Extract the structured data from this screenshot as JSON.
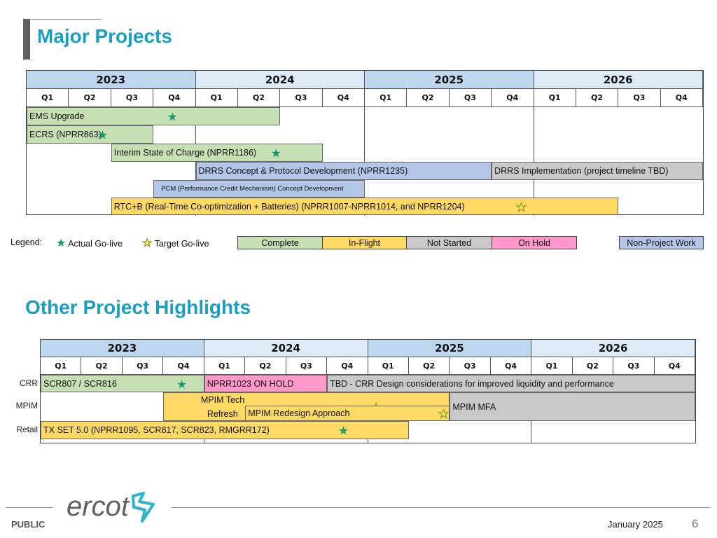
{
  "colors": {
    "complete": "#c6e0b4",
    "in_flight": "#ffd966",
    "not_started": "#c9c9c9",
    "on_hold": "#ff99cc",
    "non_project": "#b4c6e7",
    "year_dark": "#bdd7ee",
    "year_light": "#ddebf7",
    "title": "#1aa0be"
  },
  "header": {
    "title": "Major Projects"
  },
  "major": {
    "years": [
      "2023",
      "2024",
      "2025",
      "2026"
    ],
    "quarters": [
      "Q1",
      "Q2",
      "Q3",
      "Q4"
    ],
    "bars": [
      {
        "label": "EMS Upgrade",
        "status": "complete",
        "row": 0,
        "start": "2023Q1",
        "end": "2024Q2",
        "go_live": {
          "type": "actual",
          "quarter": "2023Q4"
        }
      },
      {
        "label": "ECRS  (NPRR863)",
        "status": "complete",
        "row": 1,
        "start": "2023Q1",
        "end": "2023Q3",
        "go_live": {
          "type": "actual",
          "quarter": "2023Q2"
        }
      },
      {
        "label": "Interim State of Charge (NPRR1186)",
        "status": "complete",
        "row": 2,
        "start": "2023Q3",
        "end": "2024Q3",
        "go_live": {
          "type": "actual",
          "quarter": "2024Q2"
        }
      },
      {
        "label": "DRRS Concept & Protocol Development (NPRR1235)",
        "status": "non_project",
        "row": 3,
        "start": "2024Q1",
        "end": "2025Q3"
      },
      {
        "label": "DRRS Implementation (project timeline TBD)",
        "status": "not_started",
        "row": 3,
        "start": "2025Q4",
        "end": "2026Q4"
      },
      {
        "label": "PCM  (Performance Credit Mechanism) Concept Development",
        "status": "non_project",
        "row": 4,
        "start": "2023Q4",
        "end": "2024Q4",
        "small": true
      },
      {
        "label": "RTC+B  (Real-Time Co-optimization + Batteries)  (NPRR1007-NPRR1014, and NPRR1204)",
        "status": "in_flight",
        "row": 5,
        "start": "2023Q3",
        "end": "2026Q2",
        "go_live": {
          "type": "target",
          "quarter": "2025Q4"
        }
      }
    ]
  },
  "legend": {
    "label": "Legend:",
    "actual": "Actual Go-live",
    "target": "Target Go-live",
    "complete": "Complete",
    "in_flight": "In-Flight",
    "not_started": "Not Started",
    "on_hold": "On Hold",
    "non_project": "Non-Project Work"
  },
  "other": {
    "title": "Other Project Highlights",
    "years": [
      "2023",
      "2024",
      "2025",
      "2026"
    ],
    "quarters": [
      "Q1",
      "Q2",
      "Q3",
      "Q4"
    ],
    "row_labels": [
      "CRR",
      "MPIM",
      "Retail"
    ],
    "bars": [
      {
        "label": "SCR807 / SCR816",
        "status": "complete",
        "row": "crr",
        "start": "2023Q1",
        "end": "2023Q4",
        "go_live": {
          "type": "actual",
          "quarter": "2023Q4"
        }
      },
      {
        "label": "NPRR1023 ON HOLD",
        "status": "on_hold",
        "row": "crr",
        "start": "2024Q1",
        "end": "2024Q3"
      },
      {
        "label": "TBD - CRR Design considerations for improved liquidity and performance",
        "status": "not_started",
        "row": "crr",
        "start": "2024Q4",
        "end": "2026Q4"
      },
      {
        "label": "MPIM Tech Refresh",
        "status": "in_flight",
        "row": "mpim",
        "start": "2023Q4",
        "end": "2025Q2",
        "go_live": {
          "type": "target",
          "quarter": "2025Q1"
        },
        "label_lines": [
          "MPIM Tech",
          "Refresh"
        ]
      },
      {
        "label": "MPIM Redesign Approach",
        "status": "in_flight",
        "row": "mpim_sub",
        "start": "2024Q2",
        "end": "2025Q2",
        "go_live": {
          "type": "target",
          "quarter": "2025Q2"
        }
      },
      {
        "label": "MPIM MFA",
        "status": "not_started",
        "row": "mpim",
        "start": "2025Q3",
        "end": "2026Q4"
      },
      {
        "label": "TX SET 5.0  (NPRR1095, SCR817, SCR823, RMGRR172)",
        "status": "in_flight",
        "row": "retail",
        "start": "2023Q1",
        "end": "2025Q1",
        "go_live": {
          "type": "actual",
          "quarter": "2024Q4"
        }
      }
    ]
  },
  "footer": {
    "classification": "PUBLIC",
    "logo_text": "ercot",
    "date": "January 2025",
    "page": "6"
  }
}
